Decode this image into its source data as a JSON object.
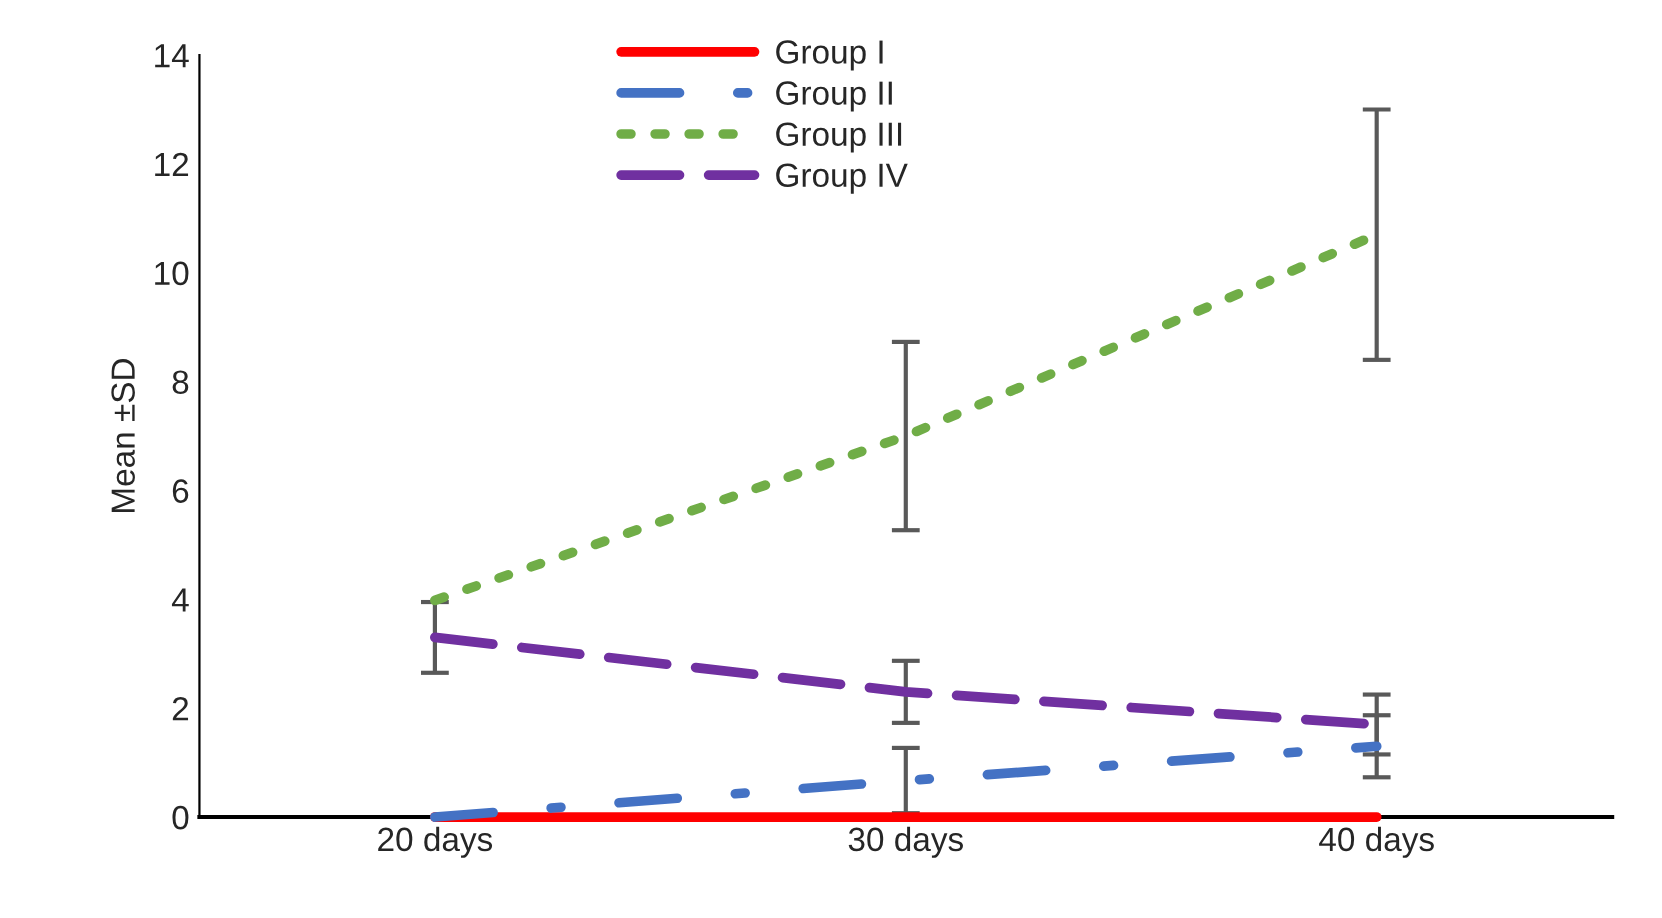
{
  "chart_data": {
    "type": "line",
    "ylabel": "Mean ±SD",
    "categories": [
      "20 days",
      "30 days",
      "40 days"
    ],
    "ylim": [
      0,
      14
    ],
    "yticks": [
      0,
      2,
      4,
      6,
      8,
      10,
      12,
      14
    ],
    "grid": false,
    "legend": "top",
    "marker": "none",
    "series": [
      {
        "name": "Group I",
        "color": "#ff0000",
        "line_style": "solid",
        "values": [
          0,
          0,
          0
        ]
      },
      {
        "name": "Group II",
        "color": "#4472c4",
        "line_style": "dashdot",
        "values": [
          0,
          0.67,
          1.3
        ],
        "errors": [
          null,
          0.6,
          0.57
        ]
      },
      {
        "name": "Group III",
        "color": "#70ad47",
        "line_style": "dotted",
        "values": [
          3.98,
          7.0,
          10.7
        ],
        "errors": [
          null,
          1.73,
          2.3
        ]
      },
      {
        "name": "Group IV",
        "color": "#7030a0",
        "line_style": "dashed",
        "values": [
          3.3,
          2.3,
          1.7
        ],
        "errors": [
          0.65,
          0.57,
          0.55
        ]
      }
    ]
  }
}
